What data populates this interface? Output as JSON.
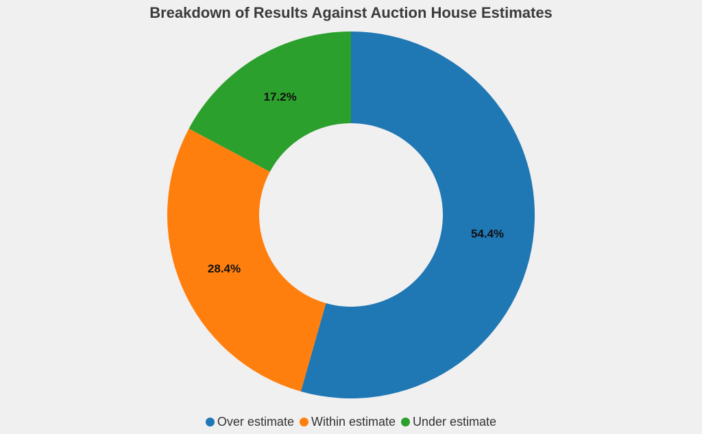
{
  "chart_data": {
    "type": "pie",
    "title": "Breakdown of Results Against Auction House Estimates",
    "donut": true,
    "legend_position": "bottom-center",
    "slices": [
      {
        "name": "Over estimate",
        "value": 54.4,
        "label": "54.4%",
        "color": "#1f77b4"
      },
      {
        "name": "Within estimate",
        "value": 28.4,
        "label": "28.4%",
        "color": "#ff7f0e"
      },
      {
        "name": "Under estimate",
        "value": 17.2,
        "label": "17.2%",
        "color": "#2ca02c"
      }
    ]
  }
}
